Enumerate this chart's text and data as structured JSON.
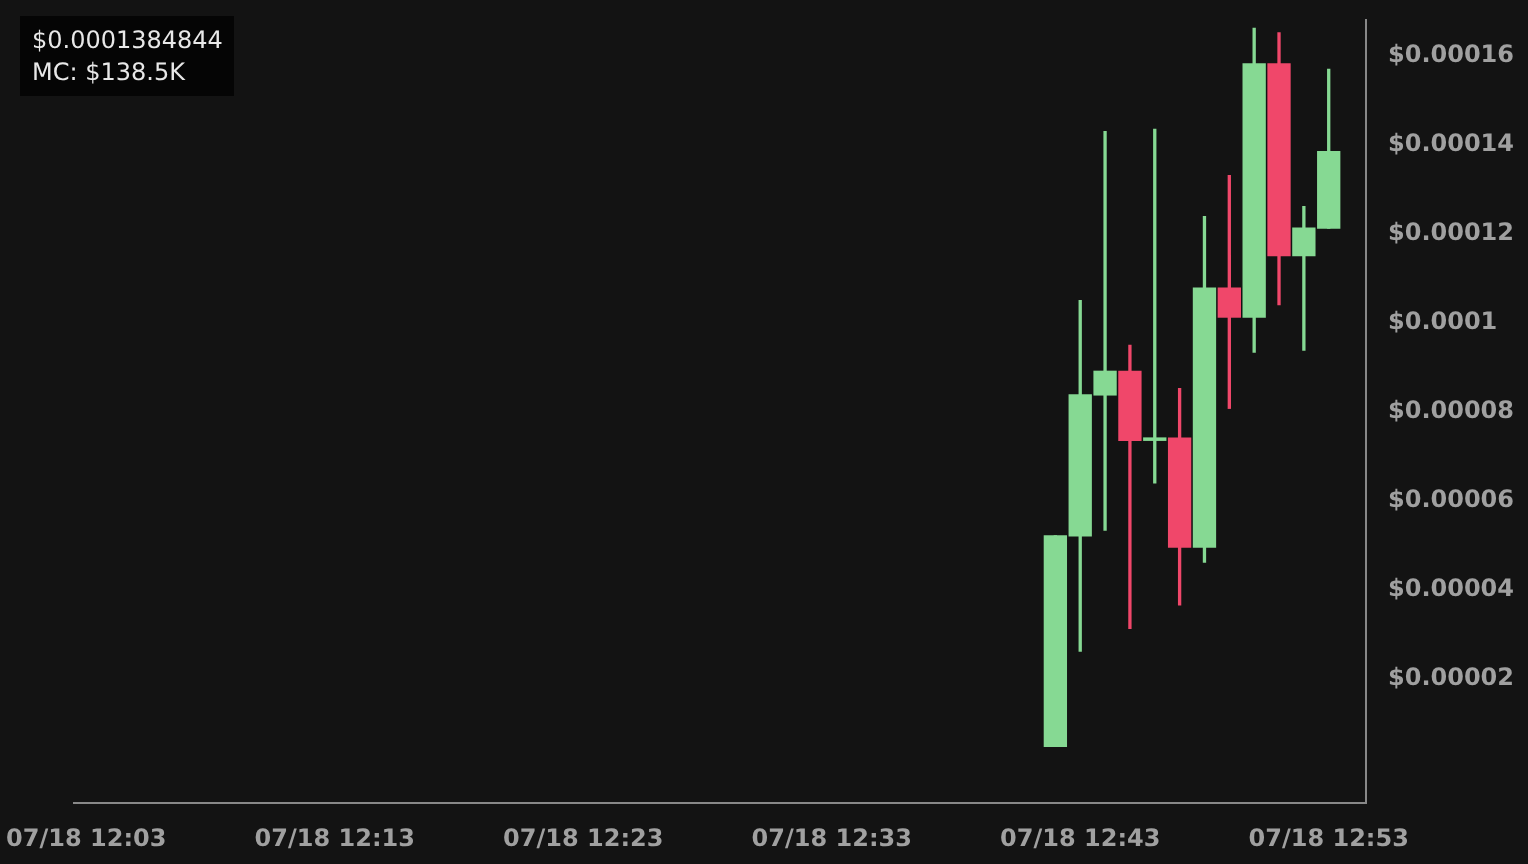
{
  "chart_data": {
    "type": "candlestick",
    "annotations": [
      "$0.0001384844",
      "MC: $138.5K"
    ],
    "categories": [
      "07/18 12:03",
      null,
      null,
      null,
      null,
      null,
      null,
      null,
      null,
      null,
      "07/18 12:13",
      null,
      null,
      null,
      null,
      null,
      null,
      null,
      null,
      null,
      "07/18 12:23",
      null,
      null,
      null,
      null,
      null,
      null,
      null,
      null,
      null,
      "07/18 12:33",
      null,
      null,
      null,
      null,
      null,
      null,
      null,
      null,
      null,
      "07/18 12:43",
      null,
      null,
      null,
      null,
      null,
      null,
      null,
      null,
      null,
      "07/18 12:53",
      null
    ],
    "ohlc": [
      null,
      null,
      null,
      null,
      null,
      null,
      null,
      null,
      null,
      null,
      null,
      null,
      null,
      null,
      null,
      null,
      null,
      null,
      null,
      null,
      null,
      null,
      null,
      null,
      null,
      null,
      null,
      null,
      null,
      null,
      null,
      null,
      null,
      null,
      null,
      null,
      null,
      null,
      null,
      [
        4.8e-06,
        5.21e-05,
        4.8e-06,
        5.21e-05
      ],
      [
        5.21e-05,
        0.000105,
        2.62e-05,
        8.38e-05
      ],
      [
        8.38e-05,
        0.000143,
        5.34e-05,
        8.91e-05
      ],
      [
        8.91e-05,
        9.49e-05,
        3.13e-05,
        7.36e-05
      ],
      [
        7.36e-05,
        0.0001435,
        6.4e-05,
        7.41e-05
      ],
      [
        7.41e-05,
        8.52e-05,
        3.66e-05,
        4.96e-05
      ],
      [
        4.96e-05,
        0.0001239,
        4.62e-05,
        0.0001078
      ],
      [
        0.0001078,
        0.0001331,
        8.08e-05,
        0.0001013
      ],
      [
        0.0001013,
        0.0001662,
        9.34e-05,
        0.0001582
      ],
      [
        0.0001582,
        0.0001652,
        0.0001041,
        0.0001151
      ],
      [
        0.0001151,
        0.0001261,
        9.39e-05,
        0.0001213
      ],
      [
        0.0001213,
        0.000157,
        0.0001213,
        0.0001385
      ],
      null
    ],
    "colors": [
      null,
      null,
      null,
      null,
      null,
      null,
      null,
      null,
      null,
      null,
      null,
      null,
      null,
      null,
      null,
      null,
      null,
      null,
      null,
      null,
      null,
      null,
      null,
      null,
      null,
      null,
      null,
      null,
      null,
      null,
      null,
      null,
      null,
      null,
      null,
      null,
      null,
      null,
      null,
      "#86d993",
      "#86d993",
      "#86d993",
      "#f0476a",
      "#86d993",
      "#f0476a",
      "#86d993",
      "#f0476a",
      "#86d993",
      "#f0476a",
      "#86d993",
      "#86d993",
      null
    ],
    "ylim": [
      -8e-06,
      0.000168
    ],
    "yticks": [
      {
        "value": 2e-05,
        "label": "$0.00002"
      },
      {
        "value": 4e-05,
        "label": "$0.00004"
      },
      {
        "value": 6e-05,
        "label": "$0.00006"
      },
      {
        "value": 8e-05,
        "label": "$0.00008"
      },
      {
        "value": 0.0001,
        "label": "$0.0001"
      },
      {
        "value": 0.00012,
        "label": "$0.00012"
      },
      {
        "value": 0.00014,
        "label": "$0.00014"
      },
      {
        "value": 0.00016,
        "label": "$0.00016"
      }
    ]
  }
}
